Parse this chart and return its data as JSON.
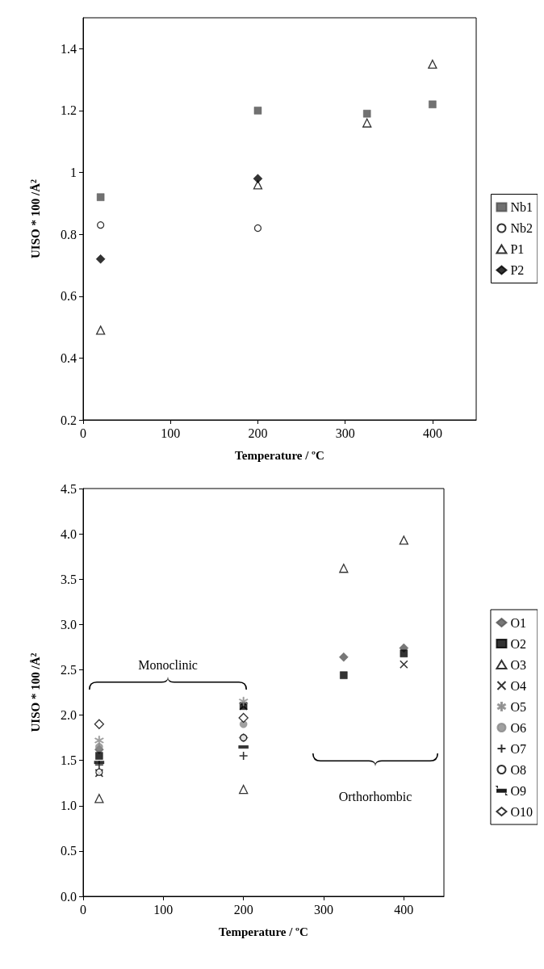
{
  "chart_data": [
    {
      "type": "scatter",
      "xlabel": "Temperature / ºC",
      "ylabel": "UISO * 100 /Å$^{2}$",
      "x": [
        20,
        200,
        325,
        400
      ],
      "xlim": [
        0,
        450
      ],
      "xticks": [
        0,
        100,
        200,
        300,
        400
      ],
      "ylim": [
        0.2,
        1.5
      ],
      "yticks": [
        0.2,
        0.4,
        0.6,
        0.8,
        1,
        1.2,
        1.4
      ],
      "grid": false,
      "legend": "right",
      "series": [
        {
          "name": "Nb1",
          "color": "#4d4d4d",
          "marker": "square",
          "values": [
            0.92,
            1.2,
            1.19,
            1.22
          ]
        },
        {
          "name": "Nb2",
          "color": "#000000",
          "marker": "circle-open",
          "values": [
            0.83,
            0.82,
            null,
            null
          ]
        },
        {
          "name": "P1",
          "color": "#000000",
          "marker": "triangle-open",
          "values": [
            0.49,
            0.96,
            1.16,
            1.35
          ]
        },
        {
          "name": "P2",
          "color": "#000000",
          "marker": "diamond",
          "values": [
            0.72,
            0.98,
            null,
            null
          ]
        }
      ]
    },
    {
      "type": "scatter",
      "xlabel": "Temperature / ºC",
      "ylabel": "UISO * 100 /Å$^{2}$",
      "x": [
        20,
        200,
        325,
        400
      ],
      "xlim": [
        0,
        450
      ],
      "xticks": [
        0,
        100,
        200,
        300,
        400
      ],
      "ylim": [
        0,
        4.5
      ],
      "yticks": [
        {
          "value": 0,
          "label": "0.0"
        },
        0.5,
        {
          "value": 1,
          "label": "1.0"
        },
        1.5,
        {
          "value": 2,
          "label": "2.0"
        },
        2.5,
        {
          "value": 3,
          "label": "3.0"
        },
        3.5,
        {
          "value": 4,
          "label": "4.0"
        },
        4.5
      ],
      "grid": false,
      "legend": "right",
      "annotations": [
        "Monoclinic",
        "Orthorhombic"
      ],
      "series": [
        {
          "name": "O1",
          "color": "#555555",
          "marker": "diamond",
          "values": [
            1.62,
            1.75,
            2.64,
            2.74
          ]
        },
        {
          "name": "O2",
          "color": "#000000",
          "marker": "square",
          "values": [
            1.55,
            2.1,
            2.44,
            2.68
          ]
        },
        {
          "name": "O3",
          "color": "#000000",
          "marker": "triangle-open",
          "values": [
            1.08,
            1.18,
            3.62,
            3.93
          ]
        },
        {
          "name": "O4",
          "color": "#000000",
          "marker": "x",
          "values": [
            1.36,
            2.1,
            null,
            2.56
          ]
        },
        {
          "name": "O5",
          "color": "#888888",
          "marker": "star",
          "values": [
            1.72,
            2.15,
            null,
            null
          ]
        },
        {
          "name": "O6",
          "color": "#888888",
          "marker": "circle",
          "values": [
            1.65,
            1.9,
            null,
            null
          ]
        },
        {
          "name": "O7",
          "color": "#000000",
          "marker": "cross",
          "values": [
            1.45,
            1.55,
            null,
            null
          ]
        },
        {
          "name": "O8",
          "color": "#000000",
          "marker": "circle-open",
          "values": [
            1.37,
            1.75,
            null,
            null
          ]
        },
        {
          "name": "O9",
          "color": "#000000",
          "values": [
            1.48,
            1.65,
            null,
            null
          ]
        },
        {
          "name": "O10",
          "color": "#000000",
          "marker": "diamond-open",
          "values": [
            1.9,
            1.97,
            null,
            null
          ]
        }
      ]
    }
  ]
}
